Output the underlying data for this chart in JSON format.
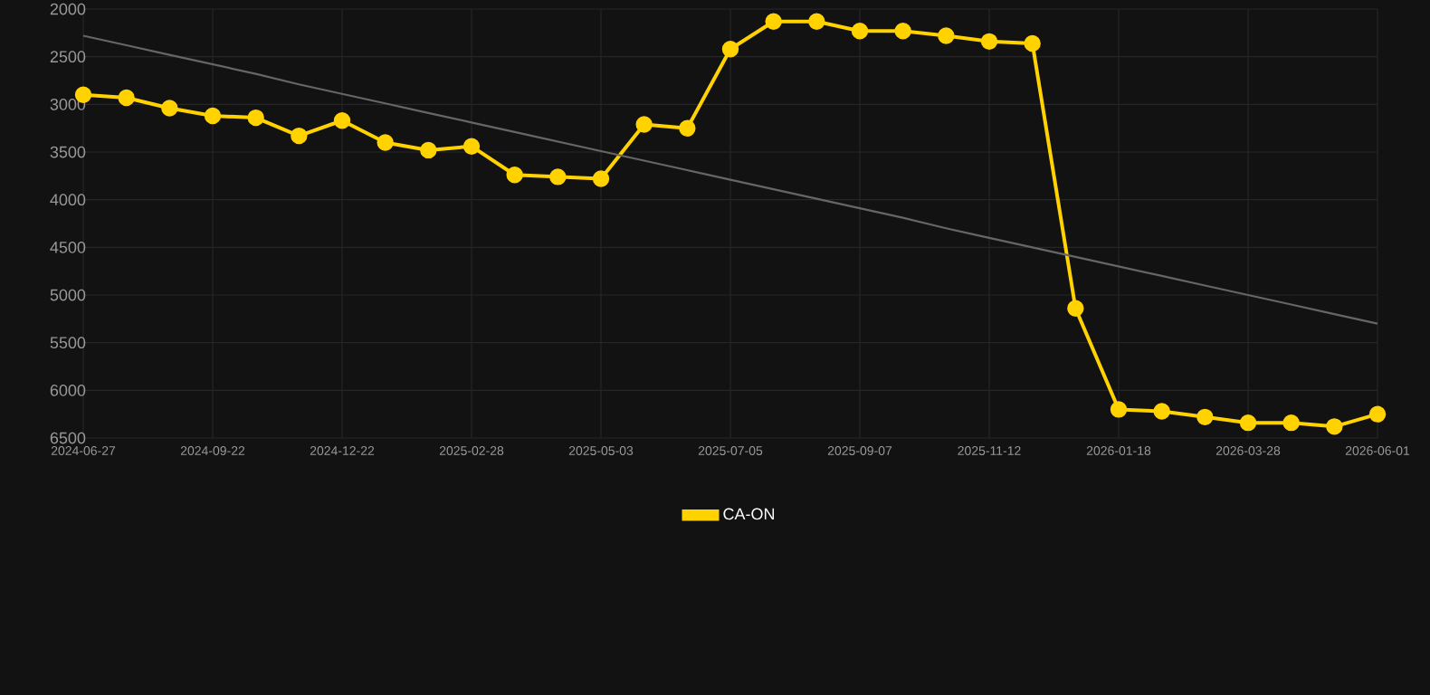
{
  "chart_data": {
    "type": "line",
    "categories": [
      "2024-06-27",
      null,
      null,
      "2024-09-22",
      null,
      null,
      "2024-12-22",
      null,
      null,
      "2025-02-28",
      null,
      null,
      "2025-05-03",
      null,
      null,
      "2025-07-05",
      null,
      null,
      "2025-09-07",
      null,
      null,
      "2025-11-12",
      null,
      null,
      "2026-01-18",
      null,
      null,
      "2026-03-28",
      null,
      null,
      "2026-06-01"
    ],
    "series": [
      {
        "name": "CA-ON",
        "color": "#ffd200",
        "marker": "circle",
        "values": [
          2900,
          2930,
          3040,
          3120,
          3140,
          3330,
          3170,
          3400,
          3480,
          3440,
          3740,
          3760,
          3780,
          3210,
          3250,
          2420,
          2130,
          2130,
          2230,
          2230,
          2280,
          2340,
          2360,
          5140,
          6200,
          6220,
          6280,
          6340,
          6340,
          6380,
          6250
        ]
      },
      {
        "type": "line",
        "color": "#666666",
        "marker": "none",
        "values": [
          2280,
          2380,
          2480,
          2580,
          2680,
          2790,
          2890,
          2990,
          3090,
          3190,
          3290,
          3390,
          3490,
          3590,
          3690,
          3790,
          3890,
          3990,
          4090,
          4190,
          4300,
          4400,
          4500,
          4600,
          4700,
          4800,
          4900,
          5000,
          5100,
          5200,
          5300
        ]
      }
    ],
    "ylim": [
      6500,
      2000
    ],
    "yticks": [
      2000,
      2500,
      3000,
      3500,
      4000,
      4500,
      5000,
      5500,
      6000,
      6500
    ],
    "grid": true,
    "legend": "bottom",
    "line_style": "solid"
  }
}
